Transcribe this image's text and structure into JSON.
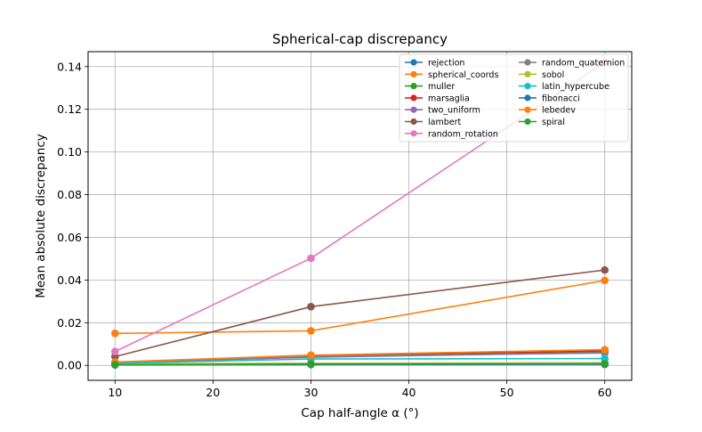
{
  "chart_data": {
    "type": "line",
    "title": "Spherical-cap discrepancy",
    "xlabel": "Cap half-angle α (°)",
    "ylabel": "Mean absolute discrepancy",
    "x": [
      10,
      30,
      60
    ],
    "xlim": [
      7.25,
      62.75
    ],
    "ylim": [
      -0.007,
      0.147
    ],
    "x_ticks": [
      10,
      20,
      30,
      40,
      50,
      60
    ],
    "y_ticks": [
      0.0,
      0.02,
      0.04,
      0.06,
      0.08,
      0.1,
      0.12,
      0.14
    ],
    "grid": true,
    "legend_position": "top-right",
    "legend_columns": 2,
    "series": [
      {
        "name": "rejection",
        "color": "#1f77b4",
        "values": [
          0.0012,
          0.004,
          0.0062
        ]
      },
      {
        "name": "spherical_coords",
        "color": "#ff7f0e",
        "values": [
          0.015,
          0.0162,
          0.0398
        ]
      },
      {
        "name": "muller",
        "color": "#2ca02c",
        "values": [
          0.0015,
          0.0045,
          0.0065
        ]
      },
      {
        "name": "marsaglia",
        "color": "#d62728",
        "values": [
          0.0013,
          0.0042,
          0.0068
        ]
      },
      {
        "name": "two_uniform",
        "color": "#9467bd",
        "values": [
          0.0014,
          0.0038,
          0.006
        ]
      },
      {
        "name": "lambert",
        "color": "#8c564b",
        "values": [
          0.0041,
          0.0275,
          0.0447
        ]
      },
      {
        "name": "random_rotation",
        "color": "#e377c2",
        "values": [
          0.0065,
          0.0502,
          0.142
        ]
      },
      {
        "name": "random_quaternion",
        "color": "#7f7f7f",
        "values": [
          0.0013,
          0.0043,
          0.0058
        ]
      },
      {
        "name": "sobol",
        "color": "#bcbd22",
        "values": [
          0.0008,
          0.001,
          0.0012
        ]
      },
      {
        "name": "latin_hypercube",
        "color": "#17becf",
        "values": [
          0.001,
          0.003,
          0.0032
        ]
      },
      {
        "name": "fibonacci",
        "color": "#1f77b4",
        "values": [
          0.0002,
          0.0004,
          0.0005
        ]
      },
      {
        "name": "lebedev",
        "color": "#ff7f0e",
        "values": [
          0.0016,
          0.0048,
          0.0074
        ]
      },
      {
        "name": "spiral",
        "color": "#2ca02c",
        "values": [
          0.0003,
          0.0006,
          0.0008
        ]
      }
    ]
  }
}
